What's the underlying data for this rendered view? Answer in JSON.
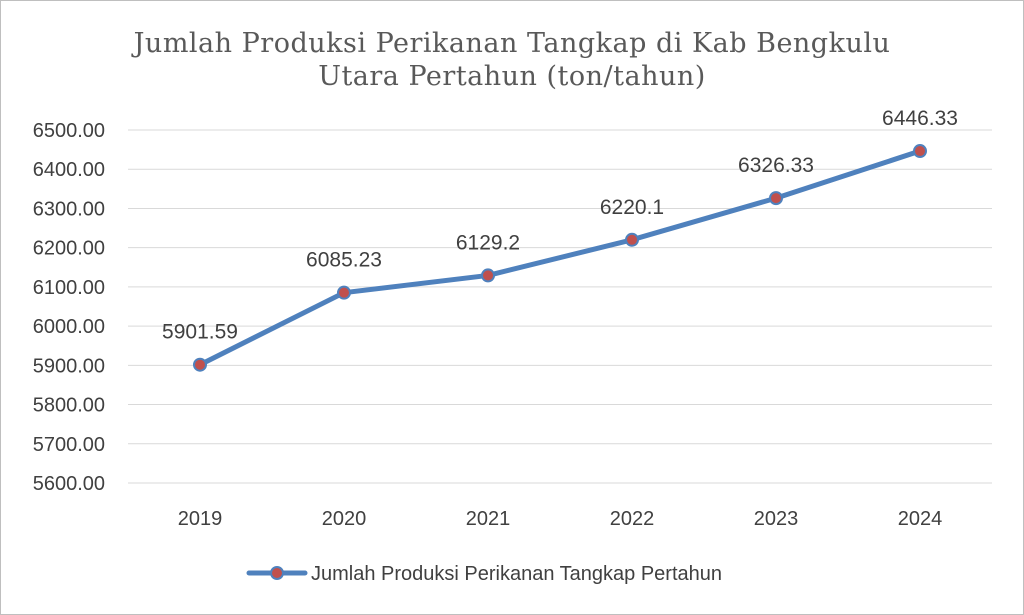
{
  "chart_data": {
    "type": "line",
    "title_lines": [
      "Jumlah Produksi Perikanan Tangkap di Kab Bengkulu",
      "Utara Pertahun (ton/tahun)"
    ],
    "categories": [
      "2019",
      "2020",
      "2021",
      "2022",
      "2023",
      "2024"
    ],
    "series": [
      {
        "name": "Jumlah Produksi Perikanan Tangkap Pertahun",
        "values": [
          5901.59,
          6085.23,
          6129.2,
          6220.1,
          6326.33,
          6446.33
        ],
        "data_labels": [
          "5901.59",
          "6085.23",
          "6129.2",
          "6220.1",
          "6326.33",
          "6446.33"
        ],
        "line_color": "#4f81bd",
        "marker_color": "#c0504d"
      }
    ],
    "yticks": [
      "5600.00",
      "5700.00",
      "5800.00",
      "5900.00",
      "6000.00",
      "6100.00",
      "6200.00",
      "6300.00",
      "6400.00",
      "6500.00"
    ],
    "ylim": [
      5600,
      6500
    ],
    "grid": true,
    "legend_position": "bottom"
  }
}
